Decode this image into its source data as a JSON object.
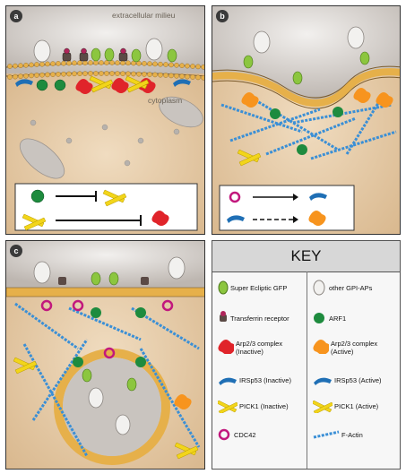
{
  "panels": [
    {
      "id": "a",
      "label": "a"
    },
    {
      "id": "b",
      "label": "b"
    },
    {
      "id": "c",
      "label": "c"
    }
  ],
  "regions": {
    "extracellular": "extracellular milieu",
    "cytoplasm": "cytoplasm"
  },
  "key": {
    "title": "KEY",
    "items": [
      {
        "icon": "gfp-icon",
        "label": "Super Ecliptic GFP"
      },
      {
        "icon": "gpi-ap-icon",
        "label": "other GPI-APs"
      },
      {
        "icon": "transferrin-receptor-icon",
        "label": "Transferrin receptor"
      },
      {
        "icon": "arf1-icon",
        "label": "ARF1"
      },
      {
        "icon": "arp23-inactive-icon",
        "label": "Arp2/3 complex\n(Inactive)"
      },
      {
        "icon": "arp23-active-icon",
        "label": "Arp2/3 complex\n(Active)"
      },
      {
        "icon": "irsp53-inactive-icon",
        "label": "IRSp53 (Inactive)"
      },
      {
        "icon": "irsp53-active-icon",
        "label": "IRSp53 (Active)"
      },
      {
        "icon": "pick1-inactive-icon",
        "label": "PICK1 (Inactive)"
      },
      {
        "icon": "pick1-active-icon",
        "label": "PICK1 (Active)"
      },
      {
        "icon": "cdc42-icon",
        "label": "CDC42"
      },
      {
        "icon": "f-actin-icon",
        "label": "F-Actin"
      }
    ]
  },
  "colors": {
    "extracellular": "#d6d1cb",
    "cytoplasm": "#e3c9a5",
    "membrane_head": "#e6b04a",
    "gfp_green": "#8cc63f",
    "arf1_green": "#1e8b3e",
    "arp23_inactive": "#e0242a",
    "arp23_active": "#f7941e",
    "irsp53": "#1f6fb5",
    "pick1": "#f2d51a",
    "cdc42": "#c2187d",
    "actin": "#3a8fd6",
    "vesicle_grey": "#b7b2ad"
  }
}
